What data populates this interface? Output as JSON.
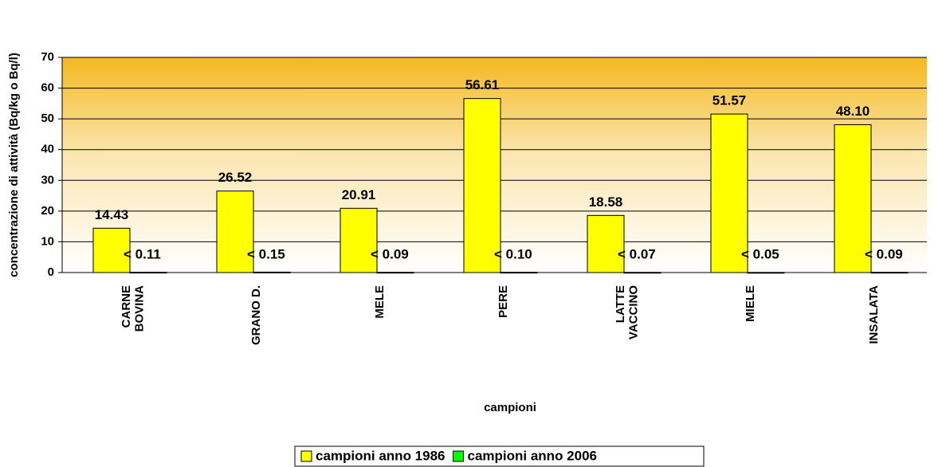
{
  "chart_data": {
    "type": "bar",
    "categories": [
      "CARNE\nBOVINA",
      "GRANO D.",
      "MELE",
      "PERE",
      "LATTE\nVACCINO",
      "MIELE",
      "INSALATA"
    ],
    "series": [
      {
        "name": "campioni anno 1986",
        "color": "#ffff00",
        "values": [
          14.43,
          26.52,
          20.91,
          56.61,
          18.58,
          51.57,
          48.1
        ],
        "value_labels": [
          "14.43",
          "26.52",
          "20.91",
          "56.61",
          "18.58",
          "51.57",
          "48.10"
        ]
      },
      {
        "name": "campioni anno 2006",
        "color": "#00ff00",
        "values": [
          0.11,
          0.15,
          0.09,
          0.1,
          0.07,
          0.05,
          0.09
        ],
        "value_labels": [
          "< 0.11",
          "< 0.15",
          "< 0.09",
          "< 0.10",
          "< 0.07",
          "< 0.05",
          "< 0.09"
        ]
      }
    ],
    "x_label": "campioni",
    "y_label": "concentrazione di attività (Bq/kg o Bq/l)",
    "ylim": [
      0,
      70
    ],
    "yticks": [
      0,
      10,
      20,
      30,
      40,
      50,
      60,
      70
    ],
    "grid": true,
    "legend": "bottom"
  }
}
